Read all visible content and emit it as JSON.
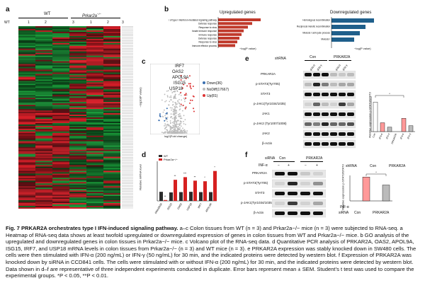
{
  "panels": {
    "a": "a",
    "b": "b",
    "c": "c",
    "d": "d",
    "e": "e",
    "f": "f"
  },
  "heatmap": {
    "group_wt": "WT",
    "group_ko": "Prkar2a",
    "ko_superscript": "−/−",
    "col_labels": [
      "WT",
      "1",
      "2",
      "3",
      "1",
      "2",
      "3"
    ],
    "colors": {
      "red": "#e0202a",
      "green": "#1a9c3a",
      "black": "#101010"
    }
  },
  "go": {
    "up_title": "Upregulated genes",
    "down_title": "Downregulated genes",
    "up_terms": [
      "Positive regulation of type I interferon-mediated signaling pathway",
      "Defense response",
      "Response to virus",
      "Innate immune response",
      "Immune response",
      "Defense response",
      "Response to virus",
      "Immune effector process"
    ],
    "up_values": [
      10,
      8,
      7,
      6,
      5.5,
      5,
      4.5,
      4
    ],
    "down_terms": [
      "Homologous recombination",
      "Reciprocal meiotic recombination",
      "Meiosis I cell-cycle process",
      "Meiosis I"
    ],
    "down_values": [
      3,
      2.4,
      2,
      1.6
    ],
    "xlabel": "−log(P value)",
    "up_color": "#c0392b",
    "down_color": "#1f5f8b"
  },
  "volcano": {
    "genes": [
      "IRF7",
      "OAS2",
      "APOL9A",
      "ISG15",
      "USP18"
    ],
    "legend": [
      "Down(36)",
      "NoDiff(17667)",
      "Up(81)"
    ],
    "legend_colors": [
      "#3a6fb0",
      "#bbbbbb",
      "#d33"
    ],
    "xlabel": "log2(Fold change)",
    "ylabel": "−log10(P value)"
  },
  "qpcr": {
    "ylabel": "Relative mRNA level",
    "legend": [
      "WT",
      "Prkar2a−/−"
    ],
    "categories": [
      "PRKAR2A",
      "ISG15",
      "OAS2",
      "USP18",
      "IRF7",
      "APOL9A"
    ],
    "sig": [
      "**",
      "**",
      "***",
      "**",
      "*",
      "*"
    ],
    "colors": {
      "wt": "#2b2b2b",
      "ko": "#d62020"
    }
  },
  "chart_data": [
    {
      "type": "bar",
      "title": "",
      "ylabel": "Relative mRNA level",
      "categories": [
        "PRKAR2A",
        "ISG15",
        "OAS2",
        "USP18",
        "IRF7",
        "APOL9A"
      ],
      "series": [
        {
          "name": "WT",
          "values": [
            [
              1.0,
              1.0,
              1.1
            ],
            [
              1.0,
              1.0,
              0.9
            ],
            [
              1.0,
              1.0,
              1.0
            ],
            [
              1.0,
              1.1,
              1.0
            ],
            [
              1.0,
              1.0,
              1.0
            ],
            [
              1.0,
              1.0,
              1.0
            ]
          ]
        },
        {
          "name": "Prkar2a−/−",
          "values": [
            [
              0.1,
              0.1,
              0.1
            ],
            [
              2.2,
              2.6,
              2.4
            ],
            [
              3.6,
              2.9,
              1.6
            ],
            [
              2.2,
              2.4,
              2.3
            ],
            [
              2.0,
              2.5,
              2.2
            ],
            [
              3.4,
              3.9,
              2.9
            ]
          ]
        }
      ]
    },
    {
      "type": "bar",
      "ylabel": "Relative expression p-STAT3/STAT3",
      "categories": [
        "Con",
        "IFN-α",
        "IFN-γ",
        "PRKAR2A",
        "IFN-α",
        "IFN-γ"
      ],
      "values": [
        1.0,
        0.3,
        0.15,
        0.0,
        0.45,
        0.2
      ],
      "colors": [
        "#ffffff",
        "#ff9999",
        "#bbbbbb",
        "#ffffff",
        "#ff9999",
        "#bbbbbb"
      ]
    },
    {
      "type": "bar",
      "ylabel": "Relative expression p-STAT3/STAT3",
      "categories": [
        "Con −",
        "Con +",
        "PRKAR2A −",
        "PRKAR2A +"
      ],
      "values": [
        0.0,
        1.5,
        0.0,
        1.0
      ],
      "colors": [
        "#ffffff",
        "#ff9999",
        "#ffffff",
        "#bbbbbb"
      ]
    }
  ],
  "wb_e": {
    "shrna_label": "shRNA",
    "groups": [
      "Con",
      "PRKAR2A"
    ],
    "treat": [
      "IFN-α",
      "IFN-γ",
      "IFN-α",
      "IFN-γ"
    ],
    "rows": [
      "PRKAR2A",
      "p-STAT3(Tyr705)",
      "STAT3",
      "p-JAK1(Tyr1034/1035)",
      "JAK1",
      "p-JAK2 (Tyr1007/1008)",
      "JAK2",
      "β-Actin"
    ],
    "bottom_shrna": "shRNA",
    "bottom_groups": [
      "Con",
      "PRKAR2A"
    ]
  },
  "wb_f": {
    "sirna_label": "siRNA",
    "groups": [
      "Con",
      "PRKAR2A"
    ],
    "inf_label": "INF-α",
    "signs": [
      "−",
      "+",
      "−",
      "+"
    ],
    "rows": [
      "PRKAR2A",
      "p-STAT3(Tyr705)",
      "STAT3",
      "p-JAK1(Tyr1034/1035)",
      "β-Actin"
    ],
    "bar_inf": "INF-α",
    "bar_sirna": "siRNA",
    "bar_groups": [
      "Con",
      "PRKAR2A"
    ]
  },
  "caption": {
    "fig": "Fig. 7",
    "title": "PRKAR2A orchestrates type I IFN-induced signaling pathway.",
    "body": "a–c Colon tissues from WT (n = 3) and Prkar2a−/− mice (n = 3) were subjected to RNA-seq. a Heatmap of RNA-seq data shows at least twofold upregulated or downregulated expression of genes in colon tissues from WT and Prkar2a−/− mice. b GO analysis of the upregulated and downregulated genes in colon tissues in Prkar2a−/− mice. c Volcano plot of the RNA-seq data. d Quantitative PCR analysis of PRKAR2A, OAS2, APOL9A, ISG15, IRF7, and USP18 mRNA levels in colon tissues from Prkar2a−/− (n = 3) and WT mice (n = 3). e PRKAR2A expression was stably knocked down in SW480 cells. The cells were then stimulated with IFN-α (200 ng/mL) or IFN-γ (50 ng/mL) for 30 min, and the indicated proteins were detected by western blot. f Expression of PRKAR2A was knocked down by siRNA in CCD841 cells. The cells were stimulated with or without IFN-α (200 ng/mL) for 30 min, and the indicated proteins were detected by western blot. Data shown in d–f are representative of three independent experiments conducted in duplicate. Error bars represent mean ± SEM. Student’s t test was used to compare the experimental groups. *P < 0.05, **P < 0.01."
  }
}
